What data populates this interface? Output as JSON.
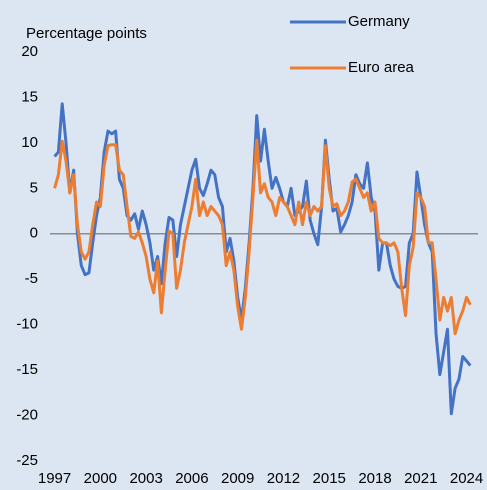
{
  "chart_data": {
    "type": "line",
    "y_label": "Percentage points",
    "x": [
      1997,
      1997.25,
      1997.5,
      1997.75,
      1998,
      1998.25,
      1998.5,
      1998.75,
      1999,
      1999.25,
      1999.5,
      1999.75,
      2000,
      2000.25,
      2000.5,
      2000.75,
      2001,
      2001.25,
      2001.5,
      2001.75,
      2002,
      2002.25,
      2002.5,
      2002.75,
      2003,
      2003.25,
      2003.5,
      2003.75,
      2004,
      2004.25,
      2004.5,
      2004.75,
      2005,
      2005.25,
      2005.5,
      2005.75,
      2006,
      2006.25,
      2006.5,
      2006.75,
      2007,
      2007.25,
      2007.5,
      2007.75,
      2008,
      2008.25,
      2008.5,
      2008.75,
      2009,
      2009.25,
      2009.5,
      2009.75,
      2010,
      2010.25,
      2010.5,
      2010.75,
      2011,
      2011.25,
      2011.5,
      2011.75,
      2012,
      2012.25,
      2012.5,
      2012.75,
      2013,
      2013.25,
      2013.5,
      2013.75,
      2014,
      2014.25,
      2014.5,
      2014.75,
      2015,
      2015.25,
      2015.5,
      2015.75,
      2016,
      2016.25,
      2016.5,
      2016.75,
      2017,
      2017.25,
      2017.5,
      2017.75,
      2018,
      2018.25,
      2018.5,
      2018.75,
      2019,
      2019.25,
      2019.5,
      2019.75,
      2020,
      2020.25,
      2020.5,
      2020.75,
      2021,
      2021.25,
      2021.5,
      2021.75,
      2022,
      2022.25,
      2022.5,
      2022.75,
      2023,
      2023.25,
      2023.5,
      2023.75,
      2024,
      2024.25
    ],
    "series": [
      {
        "name": "Germany",
        "color": "#4472c4",
        "values": [
          8.5,
          9,
          14.3,
          10,
          4.5,
          7,
          0,
          -3.5,
          -4.5,
          -4.3,
          -1,
          2,
          4,
          9,
          11.3,
          11,
          11.3,
          6,
          5,
          2,
          1.5,
          2.2,
          0.5,
          2.5,
          1,
          -1,
          -4,
          -2.5,
          -5.5,
          -1,
          1.8,
          1.5,
          -2.5,
          1,
          3,
          5,
          7,
          8.2,
          5,
          4.2,
          5.5,
          7,
          6.5,
          4,
          3,
          -2,
          -0.5,
          -3,
          -7,
          -9.5,
          -6,
          -1,
          5,
          13,
          8,
          11.5,
          8,
          5,
          6.2,
          5,
          3.5,
          3,
          5,
          2,
          2.5,
          3,
          5.8,
          1.5,
          0,
          -1.2,
          3,
          10.3,
          6,
          2.5,
          2.8,
          0.2,
          1,
          2,
          3.5,
          6.5,
          5.5,
          5,
          7.8,
          4,
          2.5,
          -4,
          -1,
          -1,
          -3.5,
          -5,
          -5.8,
          -6,
          -5.8,
          -1,
          0,
          6.8,
          4,
          1,
          -1,
          -2,
          -11,
          -15.5,
          -13,
          -10.5,
          -19.8,
          -17,
          -16,
          -13.5,
          -14,
          -14.5
        ]
      },
      {
        "name": "Euro area",
        "color": "#ed7d31",
        "values": [
          5,
          6.5,
          10.2,
          8,
          4.5,
          6.5,
          1,
          -2,
          -2.8,
          -2,
          1,
          3.5,
          3,
          7.5,
          9.7,
          9.8,
          9.8,
          7,
          6.5,
          3,
          -0.3,
          -0.5,
          0.2,
          -1,
          -2.5,
          -5,
          -6.5,
          -3,
          -8.7,
          -4,
          0.3,
          0,
          -6,
          -4,
          -1,
          1,
          3,
          6,
          2,
          3.5,
          2,
          3,
          2.5,
          2,
          1,
          -3.5,
          -2,
          -4,
          -8,
          -10.5,
          -7,
          -2,
          4,
          10.3,
          4.5,
          5.5,
          4,
          3.5,
          2,
          4,
          3.5,
          3,
          2,
          1,
          3.5,
          1,
          3.5,
          2,
          3,
          2.5,
          3,
          9.7,
          5,
          3,
          3.3,
          2,
          2.5,
          3.5,
          5.7,
          6,
          5,
          4,
          4.5,
          2.5,
          3.5,
          -0.5,
          -1,
          -1,
          -1.3,
          -1,
          -2,
          -6,
          -9,
          -3.5,
          -1.5,
          4.5,
          4,
          3,
          -1,
          -1,
          -5,
          -9.5,
          -7,
          -8.5,
          -7,
          -11,
          -9.5,
          -8.5,
          -7,
          -7.8
        ]
      }
    ],
    "xlim": [
      1996.7,
      2024.75
    ],
    "xticks": [
      1997,
      2000,
      2003,
      2006,
      2009,
      2012,
      2015,
      2018,
      2021,
      2024
    ],
    "ylim": [
      -25,
      20
    ],
    "yticks": [
      -25,
      -20,
      -15,
      -10,
      -5,
      0,
      5,
      10,
      15,
      20
    ],
    "legend": "upper right",
    "grid": false
  }
}
